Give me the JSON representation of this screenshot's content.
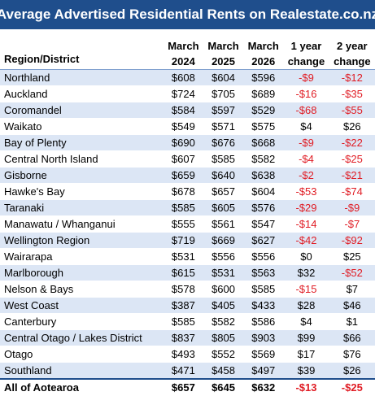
{
  "title": "Average Advertised Residential Rents on Realestate.co.nz",
  "headers": {
    "region": "Region/District",
    "cols": [
      [
        "March",
        "2024"
      ],
      [
        "March",
        "2025"
      ],
      [
        "March",
        "2026"
      ],
      [
        "1 year",
        "change"
      ],
      [
        "2 year",
        "change"
      ]
    ]
  },
  "rows": [
    {
      "region": "Northland",
      "v": [
        "$608",
        "$604",
        "$596",
        "-$9",
        "-$12"
      ]
    },
    {
      "region": "Auckland",
      "v": [
        "$724",
        "$705",
        "$689",
        "-$16",
        "-$35"
      ]
    },
    {
      "region": "Coromandel",
      "v": [
        "$584",
        "$597",
        "$529",
        "-$68",
        "-$55"
      ]
    },
    {
      "region": "Waikato",
      "v": [
        "$549",
        "$571",
        "$575",
        "$4",
        "$26"
      ]
    },
    {
      "region": "Bay of Plenty",
      "v": [
        "$690",
        "$676",
        "$668",
        "-$9",
        "-$22"
      ]
    },
    {
      "region": "Central North Island",
      "v": [
        "$607",
        "$585",
        "$582",
        "-$4",
        "-$25"
      ]
    },
    {
      "region": "Gisborne",
      "v": [
        "$659",
        "$640",
        "$638",
        "-$2",
        "-$21"
      ]
    },
    {
      "region": "Hawke's Bay",
      "v": [
        "$678",
        "$657",
        "$604",
        "-$53",
        "-$74"
      ]
    },
    {
      "region": "Taranaki",
      "v": [
        "$585",
        "$605",
        "$576",
        "-$29",
        "-$9"
      ]
    },
    {
      "region": "Manawatu / Whanganui",
      "v": [
        "$555",
        "$561",
        "$547",
        "-$14",
        "-$7"
      ]
    },
    {
      "region": "Wellington Region",
      "v": [
        "$719",
        "$669",
        "$627",
        "-$42",
        "-$92"
      ]
    },
    {
      "region": "Wairarapa",
      "v": [
        "$531",
        "$556",
        "$556",
        "$0",
        "$25"
      ]
    },
    {
      "region": "Marlborough",
      "v": [
        "$615",
        "$531",
        "$563",
        "$32",
        "-$52"
      ]
    },
    {
      "region": "Nelson & Bays",
      "v": [
        "$578",
        "$600",
        "$585",
        "-$15",
        "$7"
      ]
    },
    {
      "region": "West Coast",
      "v": [
        "$387",
        "$405",
        "$433",
        "$28",
        "$46"
      ]
    },
    {
      "region": "Canterbury",
      "v": [
        "$585",
        "$582",
        "$586",
        "$4",
        "$1"
      ]
    },
    {
      "region": "Central Otago / Lakes District",
      "v": [
        "$837",
        "$805",
        "$903",
        "$99",
        "$66"
      ]
    },
    {
      "region": "Otago",
      "v": [
        "$493",
        "$552",
        "$569",
        "$17",
        "$76"
      ]
    },
    {
      "region": "Southland",
      "v": [
        "$471",
        "$458",
        "$497",
        "$39",
        "$26"
      ]
    }
  ],
  "total": {
    "region": "All of Aotearoa",
    "v": [
      "$657",
      "$645",
      "$632",
      "-$13",
      "-$25"
    ]
  },
  "colors": {
    "header_bg": "#1f4e8c",
    "band": "#dce6f5",
    "negative": "#e01c24"
  }
}
